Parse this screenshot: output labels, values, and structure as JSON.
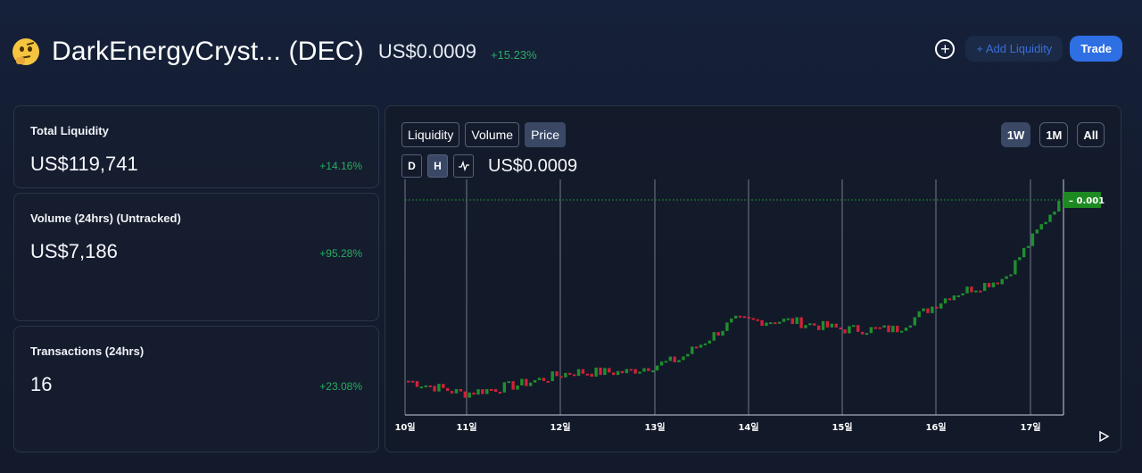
{
  "header": {
    "token_name": "DarkEnergyCryst... (DEC)",
    "price": "US$0.0009",
    "change": "+15.23%",
    "icon": "thinking-face-icon"
  },
  "actions": {
    "add_icon": "plus-circle-icon",
    "add_liquidity_label": "+ Add Liquidity",
    "trade_label": "Trade"
  },
  "stats": [
    {
      "label": "Total Liquidity",
      "value": "US$119,741",
      "change": "+14.16%"
    },
    {
      "label": "Volume (24hrs) (Untracked)",
      "value": "US$7,186",
      "change": "+95.28%"
    },
    {
      "label": "Transactions (24hrs)",
      "value": "16",
      "change": "+23.08%"
    }
  ],
  "chart": {
    "tabs": [
      "Liquidity",
      "Volume",
      "Price"
    ],
    "active_tab": "Price",
    "ranges": [
      "1W",
      "1M",
      "All"
    ],
    "active_range": "1W",
    "modes": [
      "D",
      "H"
    ],
    "active_mode": "H",
    "line_icon": "line-chart-icon",
    "price": "US$0.0009",
    "price_tag": "0.001",
    "play_icon": "play-icon"
  },
  "colors": {
    "up": "#1f8f2e",
    "down": "#d0213a",
    "accent": "#2f6fe4",
    "positive_text": "#27ae60"
  },
  "chart_data": {
    "type": "candlestick",
    "x_tick_labels": [
      "10일",
      "11일",
      "12일",
      "13일",
      "14일",
      "15일",
      "16일",
      "17일"
    ],
    "last_price_label": "0.001",
    "series": [
      {
        "close_trend": [
          0.00058,
          0.00055,
          0.00057,
          0.0006,
          0.0006,
          0.00063,
          0.00072,
          0.00072,
          0.0007,
          0.0007,
          0.00078,
          0.00082,
          0.001
        ]
      }
    ]
  }
}
